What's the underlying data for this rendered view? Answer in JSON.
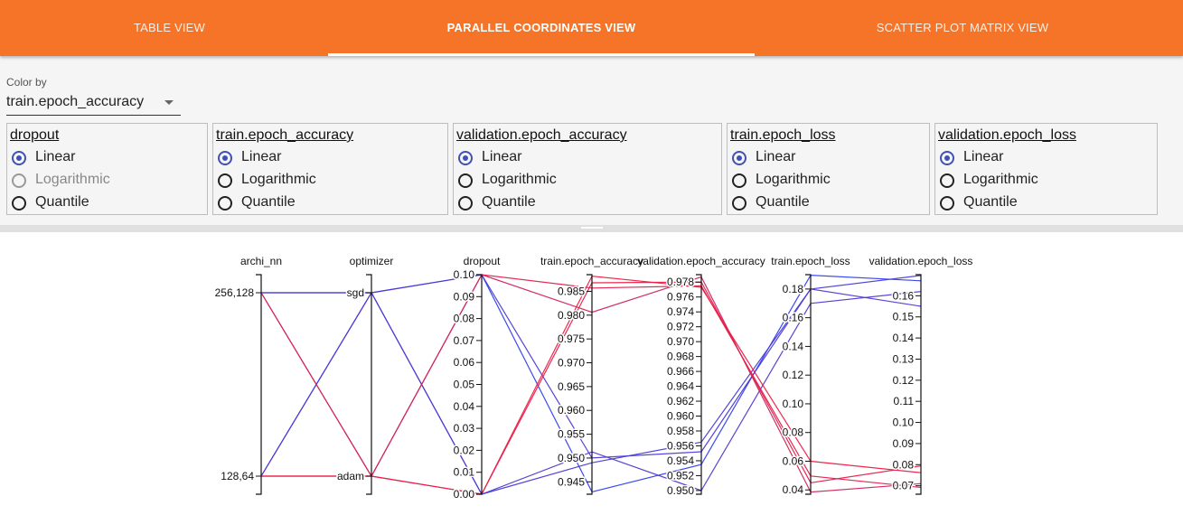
{
  "tabs": [
    {
      "label": "TABLE VIEW",
      "active": false
    },
    {
      "label": "PARALLEL COORDINATES VIEW",
      "active": true
    },
    {
      "label": "SCATTER PLOT MATRIX VIEW",
      "active": false
    }
  ],
  "color_by": {
    "label": "Color by",
    "value": "train.epoch_accuracy"
  },
  "scale_cards": [
    {
      "title": "dropout",
      "selected": "Linear",
      "disabled": [
        "Logarithmic"
      ],
      "options": [
        "Linear",
        "Logarithmic",
        "Quantile"
      ]
    },
    {
      "title": "train.epoch_accuracy",
      "selected": "Linear",
      "disabled": [],
      "options": [
        "Linear",
        "Logarithmic",
        "Quantile"
      ]
    },
    {
      "title": "validation.epoch_accuracy",
      "selected": "Linear",
      "disabled": [],
      "options": [
        "Linear",
        "Logarithmic",
        "Quantile"
      ]
    },
    {
      "title": "train.epoch_loss",
      "selected": "Linear",
      "disabled": [],
      "options": [
        "Linear",
        "Logarithmic",
        "Quantile"
      ]
    },
    {
      "title": "validation.epoch_loss",
      "selected": "Linear",
      "disabled": [],
      "options": [
        "Linear",
        "Logarithmic",
        "Quantile"
      ]
    }
  ],
  "chart_data": {
    "type": "parallel_coordinates",
    "axes": [
      {
        "name": "archi_nn",
        "kind": "categorical",
        "categories": [
          "128,64",
          "256,128"
        ]
      },
      {
        "name": "optimizer",
        "kind": "categorical",
        "categories": [
          "adam",
          "sgd"
        ]
      },
      {
        "name": "dropout",
        "kind": "linear",
        "domain": [
          0.0,
          0.1
        ],
        "ticks": [
          0.0,
          0.01,
          0.02,
          0.03,
          0.04,
          0.05,
          0.06,
          0.07,
          0.08,
          0.09,
          0.1
        ],
        "decimals": 2
      },
      {
        "name": "train.epoch_accuracy",
        "kind": "linear",
        "domain": [
          0.9424,
          0.9885
        ],
        "ticks": [
          0.945,
          0.95,
          0.955,
          0.96,
          0.965,
          0.97,
          0.975,
          0.98,
          0.985
        ],
        "decimals": 3
      },
      {
        "name": "validation.epoch_accuracy",
        "kind": "linear",
        "domain": [
          0.9495,
          0.979
        ],
        "ticks": [
          0.95,
          0.952,
          0.954,
          0.956,
          0.958,
          0.96,
          0.962,
          0.964,
          0.966,
          0.968,
          0.97,
          0.972,
          0.974,
          0.976,
          0.978
        ],
        "decimals": 3
      },
      {
        "name": "train.epoch_loss",
        "kind": "linear",
        "domain": [
          0.037,
          0.19
        ],
        "ticks": [
          0.04,
          0.06,
          0.08,
          0.1,
          0.12,
          0.14,
          0.16,
          0.18
        ],
        "decimals": 2
      },
      {
        "name": "validation.epoch_loss",
        "kind": "linear",
        "domain": [
          0.066,
          0.17
        ],
        "ticks": [
          0.07,
          0.08,
          0.09,
          0.1,
          0.11,
          0.12,
          0.13,
          0.14,
          0.15,
          0.16
        ],
        "decimals": 2
      }
    ],
    "color_by": "train.epoch_accuracy",
    "colors": {
      "low": "#2f3ff0",
      "high": "#ee1e44"
    },
    "runs": [
      {
        "archi_nn": "256,128",
        "optimizer": "sgd",
        "dropout": 0.1,
        "train.epoch_accuracy": 0.9429,
        "validation.epoch_accuracy": 0.9535,
        "train.epoch_loss": 0.1896,
        "validation.epoch_loss": 0.1671
      },
      {
        "archi_nn": "256,128",
        "optimizer": "sgd",
        "dropout": 0.1,
        "train.epoch_accuracy": 0.95,
        "validation.epoch_accuracy": 0.9552,
        "train.epoch_loss": 0.18,
        "validation.epoch_loss": 0.155
      },
      {
        "archi_nn": "128,64",
        "optimizer": "sgd",
        "dropout": 0.0,
        "train.epoch_accuracy": 0.9513,
        "validation.epoch_accuracy": 0.95,
        "train.epoch_loss": 0.17,
        "validation.epoch_loss": 0.162
      },
      {
        "archi_nn": "128,64",
        "optimizer": "sgd",
        "dropout": 0.0,
        "train.epoch_accuracy": 0.949,
        "validation.epoch_accuracy": 0.9565,
        "train.epoch_loss": 0.18,
        "validation.epoch_loss": 0.1696
      },
      {
        "archi_nn": "256,128",
        "optimizer": "adam",
        "dropout": 0.1,
        "train.epoch_accuracy": 0.9857,
        "validation.epoch_accuracy": 0.9775,
        "train.epoch_loss": 0.0497,
        "validation.epoch_loss": 0.0692
      },
      {
        "archi_nn": "256,128",
        "optimizer": "adam",
        "dropout": 0.1,
        "train.epoch_accuracy": 0.9806,
        "validation.epoch_accuracy": 0.9787,
        "train.epoch_loss": 0.0385,
        "validation.epoch_loss": 0.071
      },
      {
        "archi_nn": "128,64",
        "optimizer": "adam",
        "dropout": 0.0,
        "train.epoch_accuracy": 0.9882,
        "validation.epoch_accuracy": 0.9773,
        "train.epoch_loss": 0.06,
        "validation.epoch_loss": 0.0762
      },
      {
        "archi_nn": "128,64",
        "optimizer": "adam",
        "dropout": 0.0,
        "train.epoch_accuracy": 0.9868,
        "validation.epoch_accuracy": 0.978,
        "train.epoch_loss": 0.045,
        "validation.epoch_loss": 0.0794
      }
    ]
  }
}
